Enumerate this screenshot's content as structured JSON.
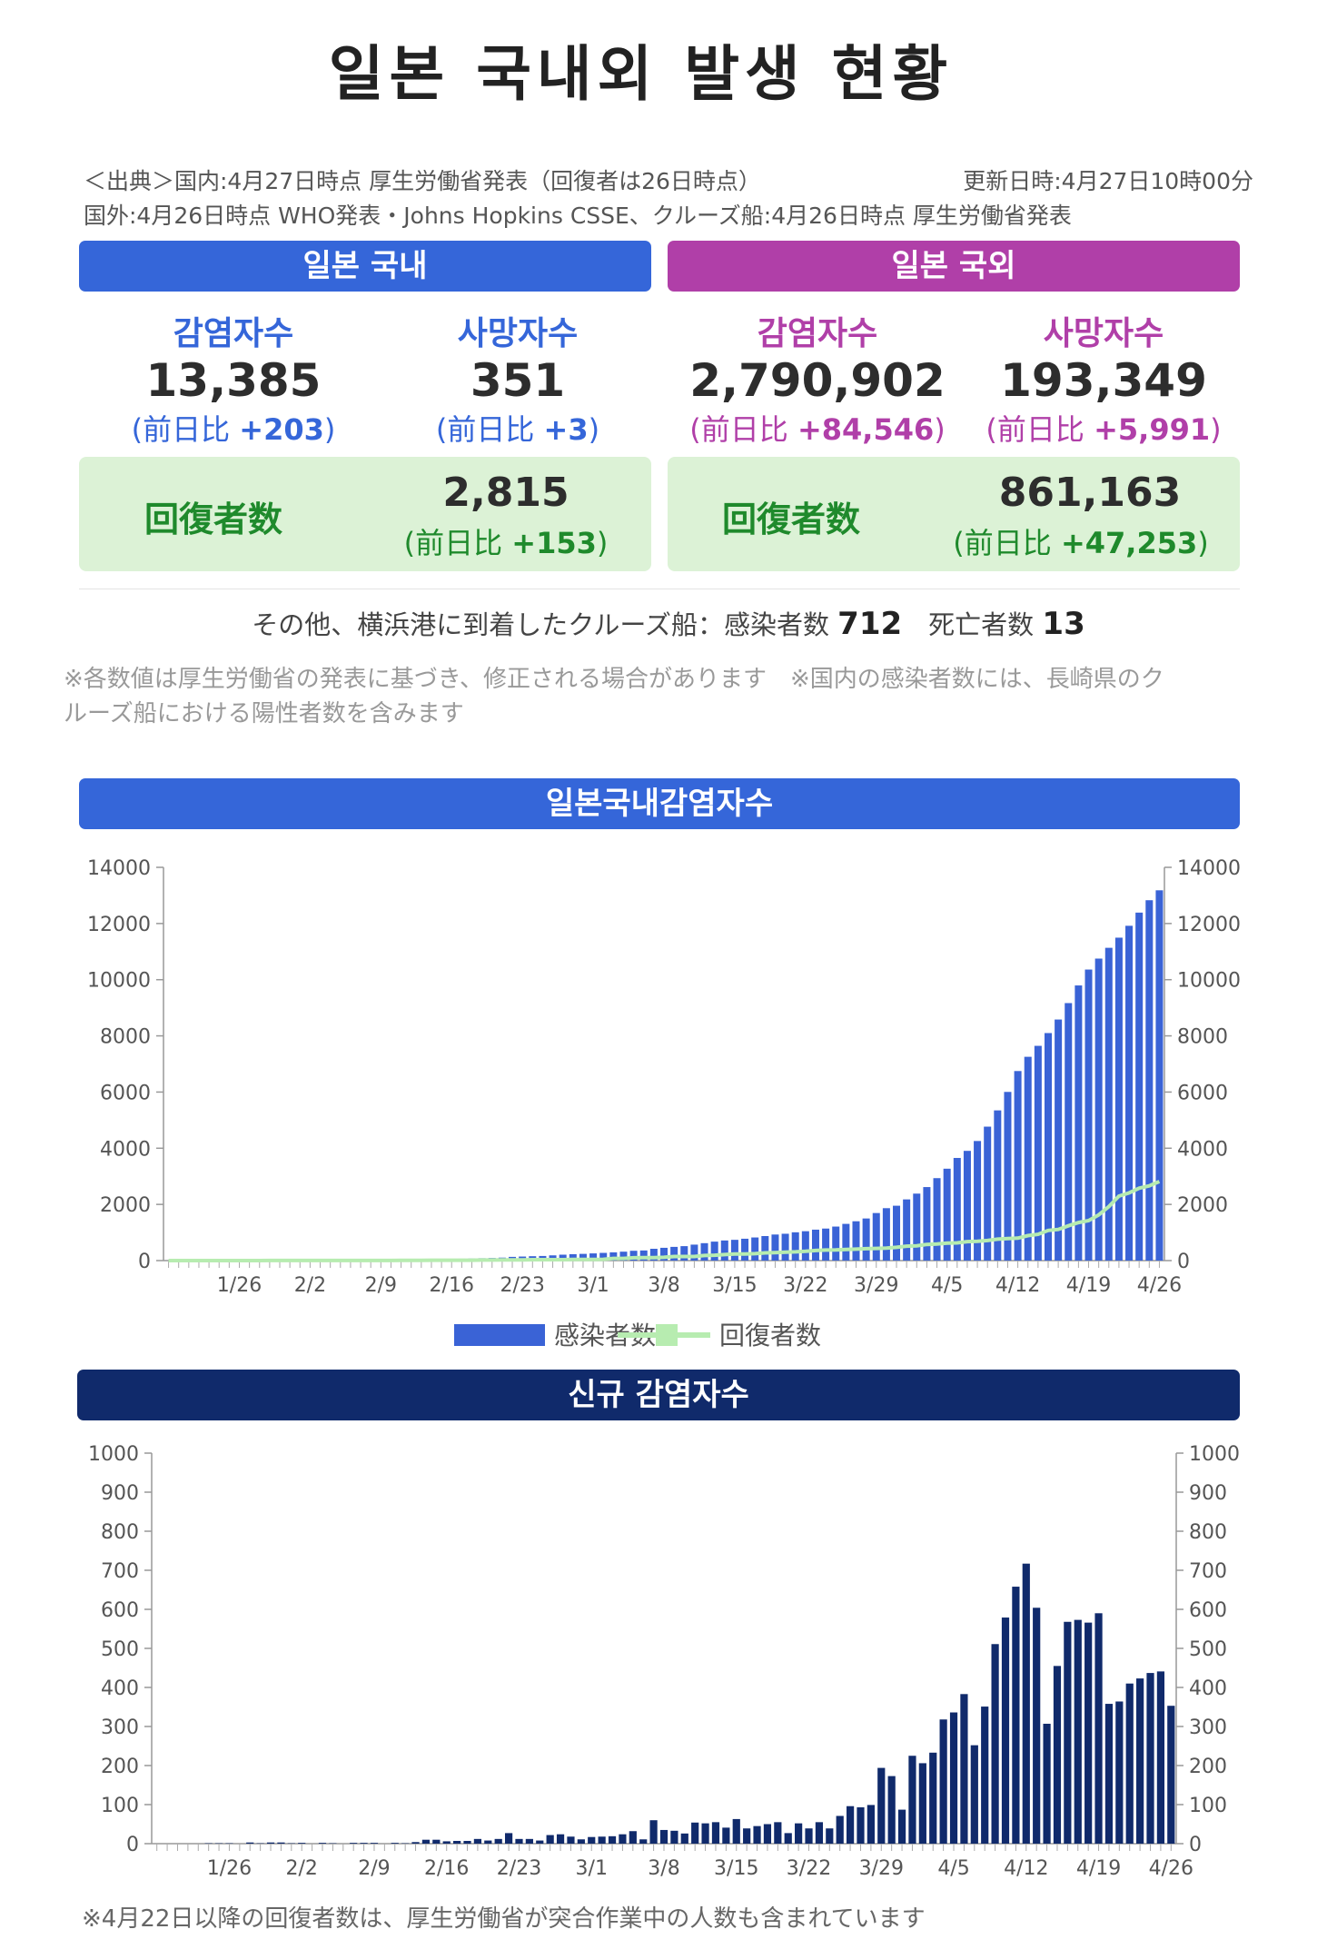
{
  "title": "일본 국내외 발생 현황",
  "source": {
    "line1": "＜出典＞国内:4月27日時点 厚生労働省発表（回復者は26日時点）",
    "updated": "更新日時:4月27日10時00分",
    "line2": "国外:4月26日時点 WHO発表・Johns Hopkins CSSE、クルーズ船:4月26日時点 厚生労働省発表"
  },
  "domestic": {
    "header": "일본 국내",
    "infected": {
      "label": "감염자수",
      "value": "13,385",
      "delta_prefix": "(前日比",
      "delta": "+203",
      "delta_suffix": ")"
    },
    "deaths": {
      "label": "사망자수",
      "value": "351",
      "delta_prefix": "(前日比",
      "delta": "+3",
      "delta_suffix": ")"
    },
    "recovered": {
      "label": "回復者数",
      "value": "2,815",
      "delta_prefix": "(前日比",
      "delta": "+153",
      "delta_suffix": ")"
    }
  },
  "overseas": {
    "header": "일본 국외",
    "infected": {
      "label": "감염자수",
      "value": "2,790,902",
      "delta_prefix": "(前日比",
      "delta": "+84,546",
      "delta_suffix": ")"
    },
    "deaths": {
      "label": "사망자수",
      "value": "193,349",
      "delta_prefix": "(前日比",
      "delta": "+5,991",
      "delta_suffix": ")"
    },
    "recovered": {
      "label": "回復者数",
      "value": "861,163",
      "delta_prefix": "(前日比",
      "delta": "+47,253",
      "delta_suffix": ")"
    }
  },
  "cruise": {
    "text": "その他、横浜港に到着したクルーズ船：感染者数",
    "infected": "712",
    "deaths_label": "死亡者数",
    "deaths": "13"
  },
  "notes": {
    "line1": "※各数値は厚生労働省の発表に基づき、修正される場合があります　※国内の感染者数には、長崎県のク",
    "line2": "ルーズ船における陽性者数を含みます"
  },
  "footnote": "※4月22日以降の回復者数は、厚生労働省が突合作業中の人数も含まれています",
  "colors": {
    "blue": "#3566d9",
    "purple": "#b03fa8",
    "navy": "#102a6b",
    "green": "#1f8a2c",
    "recovered_line": "#b7ecb0",
    "bar_blue": "#3a63d6",
    "bar_navy": "#102a6b"
  },
  "chart_data": [
    {
      "type": "bar",
      "title": "일본국내감염자수",
      "categories": [
        "1/19",
        "1/20",
        "1/21",
        "1/22",
        "1/23",
        "1/24",
        "1/25",
        "1/26",
        "1/27",
        "1/28",
        "1/29",
        "1/30",
        "1/31",
        "2/1",
        "2/2",
        "2/3",
        "2/4",
        "2/5",
        "2/6",
        "2/7",
        "2/8",
        "2/9",
        "2/10",
        "2/11",
        "2/12",
        "2/13",
        "2/14",
        "2/15",
        "2/16",
        "2/17",
        "2/18",
        "2/19",
        "2/20",
        "2/21",
        "2/22",
        "2/23",
        "2/24",
        "2/25",
        "2/26",
        "2/27",
        "2/28",
        "2/29",
        "3/1",
        "3/2",
        "3/3",
        "3/4",
        "3/5",
        "3/6",
        "3/7",
        "3/8",
        "3/9",
        "3/10",
        "3/11",
        "3/12",
        "3/13",
        "3/14",
        "3/15",
        "3/16",
        "3/17",
        "3/18",
        "3/19",
        "3/20",
        "3/21",
        "3/22",
        "3/23",
        "3/24",
        "3/25",
        "3/26",
        "3/27",
        "3/28",
        "3/29",
        "3/30",
        "3/31",
        "4/1",
        "4/2",
        "4/3",
        "4/4",
        "4/5",
        "4/6",
        "4/7",
        "4/8",
        "4/9",
        "4/10",
        "4/11",
        "4/12",
        "4/13",
        "4/14",
        "4/15",
        "4/16",
        "4/17",
        "4/18",
        "4/19",
        "4/20",
        "4/21",
        "4/22",
        "4/23",
        "4/24",
        "4/25",
        "4/26"
      ],
      "tick_labels": [
        "1/26",
        "2/2",
        "2/9",
        "2/16",
        "2/23",
        "3/1",
        "3/8",
        "3/15",
        "3/22",
        "3/29",
        "4/5",
        "4/12",
        "4/19",
        "4/26"
      ],
      "series": [
        {
          "name": "感染者数",
          "chart": "bar",
          "values": [
            1,
            1,
            1,
            1,
            1,
            2,
            3,
            4,
            4,
            7,
            8,
            11,
            14,
            15,
            17,
            17,
            19,
            20,
            20,
            22,
            24,
            26,
            26,
            28,
            29,
            33,
            43,
            53,
            59,
            66,
            73,
            85,
            93,
            105,
            132,
            144,
            156,
            164,
            186,
            210,
            228,
            239,
            256,
            274,
            293,
            317,
            349,
            360,
            420,
            455,
            488,
            514,
            568,
            620,
            675,
            716,
            739,
            778,
            823,
            873,
            928,
            955,
            1007,
            1046,
            1101,
            1140,
            1211,
            1307,
            1400,
            1499,
            1693,
            1866,
            1953,
            2178,
            2384,
            2617,
            2935,
            3271,
            3654,
            3906,
            4257,
            4768,
            5347,
            6005,
            6748,
            7255,
            7645,
            8100,
            8582,
            9167,
            9795,
            10361,
            10751,
            11135,
            11496,
            11919,
            12388,
            12829,
            13182
          ]
        },
        {
          "name": "回復者数",
          "chart": "line",
          "values": [
            0,
            0,
            0,
            1,
            1,
            1,
            1,
            1,
            1,
            1,
            2,
            2,
            3,
            4,
            4,
            4,
            4,
            4,
            4,
            4,
            4,
            4,
            4,
            9,
            9,
            9,
            12,
            12,
            12,
            12,
            14,
            18,
            18,
            22,
            22,
            24,
            32,
            32,
            32,
            32,
            41,
            43,
            43,
            46,
            76,
            76,
            101,
            105,
            105,
            118,
            144,
            144,
            144,
            180,
            191,
            215,
            235,
            235,
            246,
            275,
            285,
            301,
            310,
            331,
            359,
            376,
            378,
            393,
            409,
            424,
            432,
            442,
            472,
            514,
            526,
            575,
            592,
            622,
            632,
            677,
            685,
            714,
            762,
            784,
            799,
            889,
            934,
            1075,
            1108,
            1239,
            1356,
            1424,
            1627,
            1925,
            2296,
            2408,
            2576,
            2662,
            2815
          ]
        }
      ],
      "ylim": [
        0,
        14000
      ],
      "y_ticks": [
        0,
        2000,
        4000,
        6000,
        8000,
        10000,
        12000,
        14000
      ],
      "legend": [
        "感染者数",
        "回復者数"
      ],
      "legend_position": "bottom-center",
      "grid": false
    },
    {
      "type": "bar",
      "title": "신규 감염자수",
      "categories": [
        "1/19",
        "1/20",
        "1/21",
        "1/22",
        "1/23",
        "1/24",
        "1/25",
        "1/26",
        "1/27",
        "1/28",
        "1/29",
        "1/30",
        "1/31",
        "2/1",
        "2/2",
        "2/3",
        "2/4",
        "2/5",
        "2/6",
        "2/7",
        "2/8",
        "2/9",
        "2/10",
        "2/11",
        "2/12",
        "2/13",
        "2/14",
        "2/15",
        "2/16",
        "2/17",
        "2/18",
        "2/19",
        "2/20",
        "2/21",
        "2/22",
        "2/23",
        "2/24",
        "2/25",
        "2/26",
        "2/27",
        "2/28",
        "2/29",
        "3/1",
        "3/2",
        "3/3",
        "3/4",
        "3/5",
        "3/6",
        "3/7",
        "3/8",
        "3/9",
        "3/10",
        "3/11",
        "3/12",
        "3/13",
        "3/14",
        "3/15",
        "3/16",
        "3/17",
        "3/18",
        "3/19",
        "3/20",
        "3/21",
        "3/22",
        "3/23",
        "3/24",
        "3/25",
        "3/26",
        "3/27",
        "3/28",
        "3/29",
        "3/30",
        "3/31",
        "4/1",
        "4/2",
        "4/3",
        "4/4",
        "4/5",
        "4/6",
        "4/7",
        "4/8",
        "4/9",
        "4/10",
        "4/11",
        "4/12",
        "4/13",
        "4/14",
        "4/15",
        "4/16",
        "4/17",
        "4/18",
        "4/19",
        "4/20",
        "4/21",
        "4/22",
        "4/23",
        "4/24",
        "4/25",
        "4/26"
      ],
      "tick_labels": [
        "1/26",
        "2/2",
        "2/9",
        "2/16",
        "2/23",
        "3/1",
        "3/8",
        "3/15",
        "3/22",
        "3/29",
        "4/5",
        "4/12",
        "4/19",
        "4/26"
      ],
      "series": [
        {
          "name": "신규 감염자수",
          "values": [
            0,
            0,
            0,
            0,
            0,
            1,
            1,
            1,
            0,
            3,
            1,
            3,
            3,
            1,
            2,
            0,
            2,
            1,
            0,
            2,
            2,
            2,
            0,
            2,
            1,
            4,
            10,
            10,
            6,
            7,
            7,
            12,
            8,
            12,
            27,
            12,
            12,
            8,
            22,
            24,
            18,
            11,
            17,
            18,
            19,
            24,
            32,
            11,
            60,
            35,
            33,
            26,
            54,
            52,
            55,
            41,
            63,
            39,
            45,
            50,
            55,
            27,
            52,
            39,
            55,
            39,
            71,
            96,
            93,
            99,
            194,
            173,
            87,
            225,
            206,
            233,
            318,
            336,
            383,
            252,
            351,
            511,
            579,
            658,
            717,
            604,
            307,
            455,
            568,
            573,
            566,
            590,
            358,
            364,
            410,
            423,
            437,
            441,
            353
          ]
        }
      ],
      "ylim": [
        0,
        1000
      ],
      "y_ticks": [
        0,
        100,
        200,
        300,
        400,
        500,
        600,
        700,
        800,
        900,
        1000
      ],
      "grid": false
    }
  ]
}
